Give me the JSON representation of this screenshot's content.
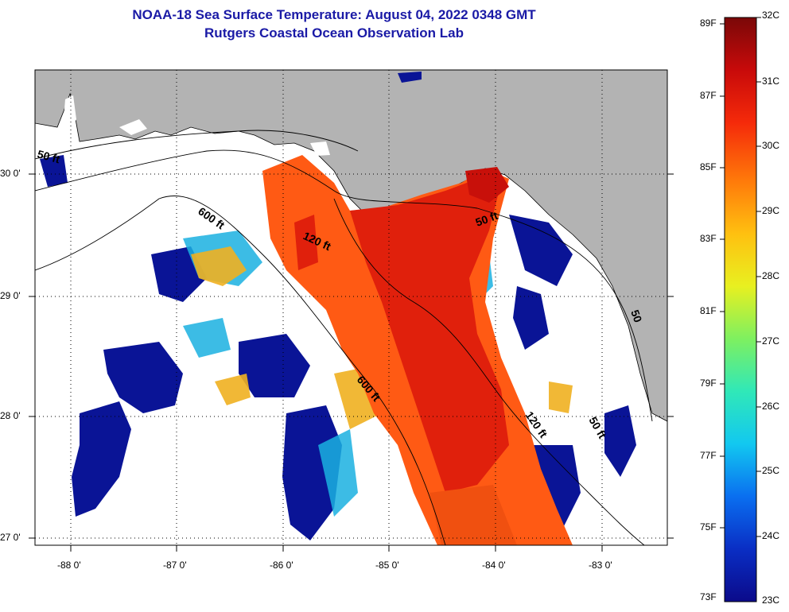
{
  "header": {
    "title_line1": "NOAA-18 Sea Surface Temperature:  August 04, 2022 0348 GMT",
    "title_line2": "Rutgers Coastal Ocean Observation Lab"
  },
  "map": {
    "lon_ticks": [
      "-88 0'",
      "-87 0'",
      "-86 0'",
      "-85 0'",
      "-84 0'",
      "-83 0'"
    ],
    "lat_ticks": [
      "30 0'",
      "29 0'",
      "28 0'",
      "27 0'"
    ],
    "contour_labels": [
      "50 ft",
      "600 ft",
      "120 ft",
      "50 ft",
      "600 ft",
      "120 ft",
      "50 ft",
      "50"
    ]
  },
  "colorbar": {
    "fahrenheit": [
      "89F",
      "87F",
      "85F",
      "83F",
      "81F",
      "79F",
      "77F",
      "75F",
      "73F"
    ],
    "celsius": [
      "32C",
      "31C",
      "30C",
      "29C",
      "28C",
      "27C",
      "26C",
      "25C",
      "24C",
      "23C"
    ],
    "gradient_stops": [
      "#0b0a8a",
      "#0a2ec4",
      "#0a6ff0",
      "#12c8f0",
      "#30e8b8",
      "#7ef060",
      "#e8f020",
      "#ffc010",
      "#ff7a0a",
      "#f52a0a",
      "#c80a0a",
      "#7a0808"
    ]
  },
  "palette": {
    "land": "#b3b3b3",
    "ocean_nodata": "#ffffff",
    "cold": "#0a1496",
    "warm": "#ff5010",
    "hot": "#e01a0a"
  }
}
